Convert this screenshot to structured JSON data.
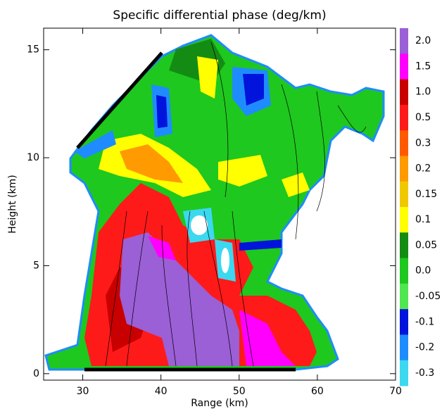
{
  "chart_data": {
    "type": "contour",
    "title": "Specific differential phase (deg/km)",
    "x_label": "Range (km)",
    "y_label": "Height (km)",
    "xlim": [
      25,
      70
    ],
    "xticks": [
      30,
      40,
      50,
      60,
      70
    ],
    "ylim": [
      -0.3,
      16
    ],
    "yticks": [
      0,
      5,
      10,
      15
    ],
    "colorbar": {
      "labels": [
        "2.0",
        "1.5",
        "1.0",
        "0.5",
        "0.3",
        "0.2",
        "0.15",
        "0.1",
        "0.05",
        "0.0",
        "-0.05",
        "-0.1",
        "-0.2",
        "-0.3"
      ],
      "colors": [
        "#9b5fd6",
        "#ff00ff",
        "#c80000",
        "#ff1a1a",
        "#ff5a00",
        "#ff9a00",
        "#f0c800",
        "#ffff00",
        "#148c14",
        "#1ec81e",
        "#50e650",
        "#0014dc",
        "#1e8cff",
        "#3cd8f0"
      ]
    }
  }
}
